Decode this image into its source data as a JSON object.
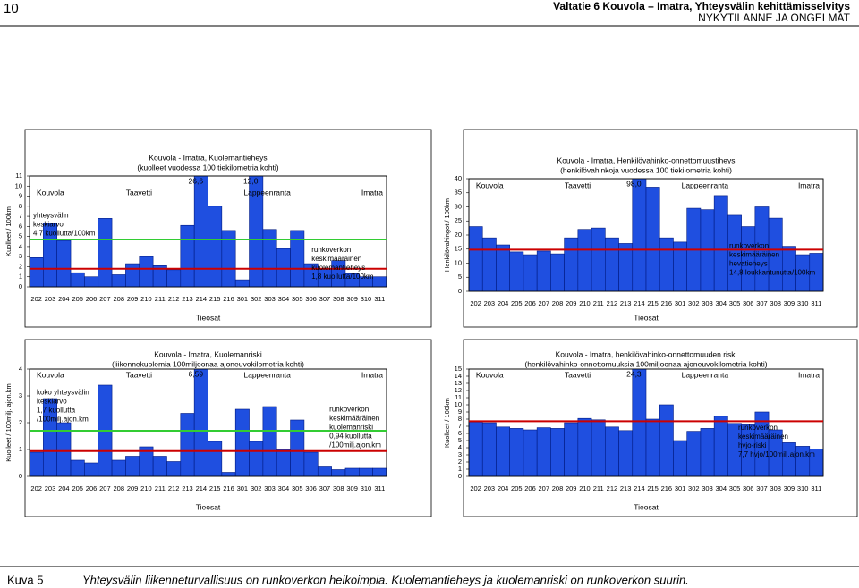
{
  "header": {
    "page_number": "10",
    "title": "Valtatie 6 Kouvola – Imatra, Yhteysvälin kehittämisselvitys",
    "subtitle": "NYKYTILANNE JA ONGELMAT"
  },
  "chart_data": [
    {
      "type": "bar",
      "title": "Kouvola - Imatra, Kuolemantieheys",
      "subtitle": "(kuolleet vuodessa 100 tiekilometria kohti)",
      "y_label": "Kuolleet / 100km",
      "x_label": "Tieosat",
      "color": "#1f4fe0",
      "grid": false,
      "regions": [
        "Kouvola",
        "Taavetti",
        "Lappeenranta",
        "Imatra"
      ],
      "categories": [
        "202",
        "203",
        "204",
        "205",
        "206",
        "207",
        "208",
        "209",
        "210",
        "211",
        "212",
        "213",
        "214",
        "215",
        "216",
        "301",
        "302",
        "303",
        "304",
        "305",
        "306",
        "307",
        "308",
        "309",
        "310",
        "311"
      ],
      "values": [
        2.9,
        6.3,
        4.6,
        1.4,
        1.0,
        6.8,
        1.2,
        2.3,
        3.0,
        2.1,
        1.7,
        6.1,
        26.6,
        8.0,
        5.6,
        0.7,
        12.0,
        5.7,
        3.8,
        5.6,
        2.3,
        1.8,
        2.6,
        1.3,
        1.0,
        1.0
      ],
      "value_labels": [
        null,
        null,
        null,
        null,
        null,
        null,
        null,
        null,
        null,
        null,
        null,
        null,
        "26,6",
        null,
        null,
        null,
        "12,0",
        null,
        null,
        null,
        null,
        null,
        null,
        null,
        null,
        null
      ],
      "ylim": [
        0,
        11
      ],
      "yticks": [
        0,
        1,
        2,
        3,
        4,
        5,
        6,
        7,
        8,
        9,
        10,
        11
      ],
      "reference_lines": [
        {
          "value": 4.7,
          "color": "#33cc33",
          "label": [
            "yhteysvälin",
            "keskiarvo",
            "4,7 kuollutta/100km"
          ]
        },
        {
          "value": 1.8,
          "color": "#cc0000",
          "label": [
            "runkoverkon",
            "keskimääräinen",
            "kuolemantieheys",
            "1,8 kuollutta/100km"
          ]
        }
      ]
    },
    {
      "type": "bar",
      "title": "Kouvola - Imatra, Henkilövahinko-onnettomuustiheys",
      "subtitle": "(henkilövahinkoja vuodessa 100 tiekilometria kohti)",
      "y_label": "Henkilövahingot / 100km",
      "x_label": "Tieosat",
      "color": "#1f4fe0",
      "grid": false,
      "regions": [
        "Kouvola",
        "Taavetti",
        "Lappeenranta",
        "Imatra"
      ],
      "categories": [
        "202",
        "203",
        "204",
        "205",
        "206",
        "207",
        "208",
        "209",
        "210",
        "211",
        "212",
        "213",
        "214",
        "215",
        "216",
        "301",
        "302",
        "303",
        "304",
        "305",
        "306",
        "307",
        "308",
        "309",
        "310",
        "311"
      ],
      "values": [
        23,
        19,
        16.5,
        14,
        13,
        14.3,
        13.3,
        19,
        22,
        22.5,
        19,
        17,
        98,
        37,
        19,
        17.5,
        29.5,
        29,
        34,
        27,
        23,
        30,
        26,
        16,
        13,
        13.5
      ],
      "value_labels": [
        null,
        null,
        null,
        null,
        null,
        null,
        null,
        null,
        null,
        null,
        null,
        null,
        "98,0",
        null,
        null,
        null,
        null,
        null,
        null,
        null,
        null,
        null,
        null,
        null,
        null,
        null
      ],
      "ylim": [
        0,
        40
      ],
      "yticks": [
        0,
        5,
        10,
        15,
        20,
        25,
        30,
        35,
        40
      ],
      "reference_lines": [
        {
          "value": 14.8,
          "color": "#cc0000",
          "label": [
            "runkoverkon",
            "keskimääräinen",
            "hevatieheys",
            "14,8 loukkantunutta/100km"
          ]
        }
      ]
    },
    {
      "type": "bar",
      "title": "Kouvola - Imatra, Kuolemanriski",
      "subtitle": "(liikennekuolemia 100miljoonaa ajoneuvokilometria kohti)",
      "y_label": "Kuolleet / 100milj. ajon.km",
      "x_label": "Tieosat",
      "color": "#1f4fe0",
      "grid": false,
      "regions": [
        "Kouvola",
        "Taavetti",
        "Lappeenranta",
        "Imatra"
      ],
      "categories": [
        "202",
        "203",
        "204",
        "205",
        "206",
        "207",
        "208",
        "209",
        "210",
        "211",
        "212",
        "213",
        "214",
        "215",
        "216",
        "301",
        "302",
        "303",
        "304",
        "305",
        "306",
        "307",
        "308",
        "309",
        "310",
        "311"
      ],
      "values": [
        0.9,
        2.9,
        2.0,
        0.6,
        0.5,
        3.4,
        0.6,
        0.75,
        1.1,
        0.75,
        0.55,
        2.35,
        6.59,
        1.3,
        0.15,
        2.5,
        1.3,
        2.6,
        1.0,
        2.1,
        0.9,
        0.35,
        0.25,
        0.3,
        0.3,
        0.3
      ],
      "value_labels": [
        null,
        null,
        null,
        null,
        null,
        null,
        null,
        null,
        null,
        null,
        null,
        null,
        "6,59",
        null,
        null,
        null,
        null,
        null,
        null,
        null,
        null,
        null,
        null,
        null,
        null,
        null
      ],
      "ylim": [
        0,
        4
      ],
      "yticks": [
        0,
        1,
        2,
        3,
        4
      ],
      "reference_lines": [
        {
          "value": 1.7,
          "color": "#33cc33",
          "label": [
            "koko yhteysvälin",
            "keskiarvo",
            "1,7 kuollutta",
            "/100milj.ajon.km"
          ]
        },
        {
          "value": 0.94,
          "color": "#cc0000",
          "label": [
            "runkoverkon",
            "keskimääräinen",
            "kuolemanriski",
            "0,94 kuollutta",
            "/100milj.ajon.km"
          ]
        }
      ]
    },
    {
      "type": "bar",
      "title": "Kouvola - Imatra, henkilövahinko-onnettomuuden riski",
      "subtitle": "(henkilövahinko-onnettomuuksia 100miljoonaa ajoneuvokilometria kohti)",
      "y_label": "Kuolleet / 100km",
      "x_label": "Tieosat",
      "color": "#1f4fe0",
      "grid": false,
      "regions": [
        "Kouvola",
        "Taavetti",
        "Lappeenranta",
        "Imatra"
      ],
      "categories": [
        "202",
        "203",
        "204",
        "205",
        "206",
        "207",
        "208",
        "209",
        "210",
        "211",
        "212",
        "213",
        "214",
        "215",
        "216",
        "301",
        "302",
        "303",
        "304",
        "305",
        "306",
        "307",
        "308",
        "309",
        "310",
        "311"
      ],
      "values": [
        7.6,
        7.5,
        6.9,
        6.7,
        6.5,
        6.8,
        6.7,
        7.5,
        8.1,
        7.9,
        6.9,
        6.4,
        24.3,
        8.0,
        10.0,
        5.0,
        6.3,
        6.7,
        8.4,
        7.4,
        7.2,
        9.0,
        6.5,
        4.7,
        4.2,
        3.8
      ],
      "value_labels": [
        null,
        null,
        null,
        null,
        null,
        null,
        null,
        null,
        null,
        null,
        null,
        null,
        "24,3",
        null,
        null,
        null,
        null,
        null,
        null,
        null,
        null,
        null,
        null,
        null,
        null,
        null
      ],
      "ylim": [
        0,
        15
      ],
      "yticks": [
        0,
        1,
        2,
        3,
        4,
        5,
        6,
        7,
        8,
        9,
        10,
        11,
        12,
        13,
        14,
        15
      ],
      "reference_lines": [
        {
          "value": 7.7,
          "color": "#cc0000",
          "label": [
            "runkoverkon",
            "keskimääräinen",
            "hvjo-riski",
            "7,7 hvjo/100milj.ajon.km"
          ]
        }
      ]
    }
  ],
  "caption": {
    "label": "Kuva 5",
    "text": "Yhteysvälin liikenneturvallisuus on runkoverkon heikoimpia. Kuolemantieheys ja kuolemanriski on runkoverkon suurin."
  }
}
